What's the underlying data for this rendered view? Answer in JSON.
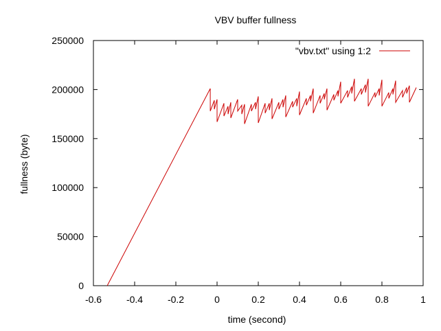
{
  "chart_data": {
    "type": "line",
    "title": "VBV buffer fullness",
    "xlabel": "time (second)",
    "ylabel": "fullness (byte)",
    "xlim": [
      -0.6,
      1
    ],
    "ylim": [
      0,
      250000
    ],
    "x_ticks": [
      -0.6,
      -0.4,
      -0.2,
      0,
      0.2,
      0.4,
      0.6,
      0.8,
      1
    ],
    "x_tick_labels": [
      "-0.6",
      "-0.4",
      "-0.2",
      "0",
      "0.2",
      "0.4",
      "0.6",
      "0.8",
      "1"
    ],
    "y_ticks": [
      0,
      50000,
      100000,
      150000,
      200000,
      250000
    ],
    "y_tick_labels": [
      "0",
      "50000",
      "100000",
      "150000",
      "200000",
      "250000"
    ],
    "legend_position": "top-right",
    "grid": false,
    "series": [
      {
        "name": "\"vbv.txt\" using 1:2",
        "color": "#cc0000",
        "x": [
          -0.533,
          -0.033,
          -0.033,
          -0.0133,
          -0.0133,
          0,
          0,
          0.0333,
          0.0333,
          0.0533,
          0.0533,
          0.0667,
          0.0667,
          0.1,
          0.1,
          0.12,
          0.12,
          0.1333,
          0.1333,
          0.1667,
          0.1667,
          0.1867,
          0.1867,
          0.2,
          0.2,
          0.2333,
          0.2333,
          0.2533,
          0.2533,
          0.2667,
          0.2667,
          0.3,
          0.3,
          0.32,
          0.32,
          0.3333,
          0.3333,
          0.3667,
          0.3667,
          0.3867,
          0.3867,
          0.4,
          0.4,
          0.4333,
          0.4333,
          0.4533,
          0.4533,
          0.4667,
          0.4667,
          0.5,
          0.5,
          0.52,
          0.52,
          0.5333,
          0.5333,
          0.5667,
          0.5667,
          0.5867,
          0.5867,
          0.6,
          0.6,
          0.6333,
          0.6333,
          0.6533,
          0.6533,
          0.6667,
          0.6667,
          0.7,
          0.7,
          0.72,
          0.72,
          0.7333,
          0.7333,
          0.7667,
          0.7667,
          0.7867,
          0.7867,
          0.8,
          0.8,
          0.8333,
          0.8333,
          0.8533,
          0.8533,
          0.8667,
          0.8667,
          0.9,
          0.9,
          0.92,
          0.92,
          0.9333,
          0.9333,
          0.9667
        ],
        "y": [
          0,
          201000,
          178000,
          189000,
          180000,
          190000,
          167000,
          186000,
          173000,
          183000,
          175000,
          187000,
          171000,
          190000,
          178000,
          184000,
          175000,
          185000,
          165000,
          185000,
          178000,
          187000,
          180000,
          193000,
          166000,
          186000,
          176000,
          186000,
          179000,
          191000,
          170000,
          187000,
          180000,
          190000,
          182000,
          194000,
          172000,
          188000,
          182000,
          191000,
          183000,
          198000,
          174000,
          191000,
          184000,
          194000,
          188000,
          201000,
          176000,
          194000,
          186000,
          196000,
          190000,
          201000,
          179000,
          195000,
          189000,
          199000,
          193000,
          208000,
          186000,
          199000,
          192000,
          203000,
          196000,
          211000,
          188000,
          201000,
          195000,
          205000,
          197000,
          211000,
          183000,
          197000,
          192000,
          201000,
          194000,
          210000,
          183000,
          197000,
          191000,
          201000,
          195000,
          209000,
          187000,
          199000,
          192000,
          202000,
          196000,
          204000,
          187000,
          202000
        ]
      }
    ]
  }
}
